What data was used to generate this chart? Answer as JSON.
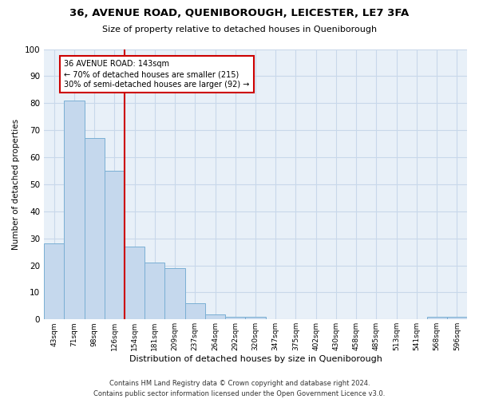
{
  "title": "36, AVENUE ROAD, QUENIBOROUGH, LEICESTER, LE7 3FA",
  "subtitle": "Size of property relative to detached houses in Queniborough",
  "xlabel": "Distribution of detached houses by size in Queniborough",
  "ylabel": "Number of detached properties",
  "categories": [
    "43sqm",
    "71sqm",
    "98sqm",
    "126sqm",
    "154sqm",
    "181sqm",
    "209sqm",
    "237sqm",
    "264sqm",
    "292sqm",
    "320sqm",
    "347sqm",
    "375sqm",
    "402sqm",
    "430sqm",
    "458sqm",
    "485sqm",
    "513sqm",
    "541sqm",
    "568sqm",
    "596sqm"
  ],
  "values": [
    28,
    81,
    67,
    55,
    27,
    21,
    19,
    6,
    2,
    1,
    1,
    0,
    0,
    0,
    0,
    0,
    0,
    0,
    0,
    1,
    1
  ],
  "bar_color": "#c5d8ed",
  "bar_edge_color": "#7aafd4",
  "vline_color": "#cc0000",
  "annotation_text": "36 AVENUE ROAD: 143sqm\n← 70% of detached houses are smaller (215)\n30% of semi-detached houses are larger (92) →",
  "annotation_box_color": "#cc0000",
  "ylim": [
    0,
    100
  ],
  "yticks": [
    0,
    10,
    20,
    30,
    40,
    50,
    60,
    70,
    80,
    90,
    100
  ],
  "grid_color": "#c8d8ea",
  "background_color": "#e8f0f8",
  "footer": "Contains HM Land Registry data © Crown copyright and database right 2024.\nContains public sector information licensed under the Open Government Licence v3.0."
}
